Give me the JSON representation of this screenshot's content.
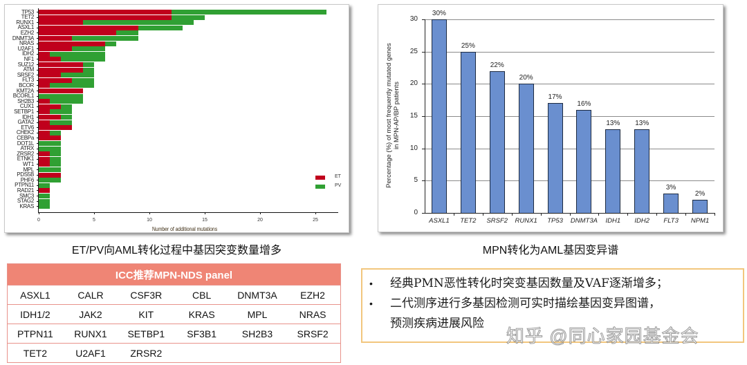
{
  "left_panel": {
    "caption": "ET/PV向AML转化过程中基因突变数量增多",
    "legend": [
      {
        "label": "ET",
        "color": "#c0001c"
      },
      {
        "label": "PV",
        "color": "#30a033"
      }
    ]
  },
  "right_panel": {
    "caption": "MPN转化为AML基因变异谱"
  },
  "icc_table": {
    "title": "ICC推荐MPN-NDS panel",
    "rows": [
      [
        "ASXL1",
        "CALR",
        "CSF3R",
        "CBL",
        "DNMT3A",
        "EZH2"
      ],
      [
        "IDH1/2",
        "JAK2",
        "KIT",
        "KRAS",
        "MPL",
        "NRAS"
      ],
      [
        "PTPN11",
        "RUNX1",
        "SETBP1",
        "SF3B1",
        "SH2B3",
        "SRSF2"
      ],
      [
        "TET2",
        "U2AF1",
        "ZRSR2",
        "",
        "",
        ""
      ]
    ]
  },
  "notes": {
    "bullet": "•",
    "items": [
      "经典PMN恶性转化时突变基因数量及VAF逐渐增多；",
      "二代测序进行多基因检测可实时描绘基因变异图谱，",
      "预测疾病进展风险"
    ]
  },
  "watermark": "知乎 @同心家园基金会",
  "chart_data": [
    {
      "type": "bar",
      "orientation": "horizontal",
      "stacked": true,
      "title": "",
      "xlabel": "Number of additional mutations",
      "ylabel": "",
      "xlim": [
        0,
        27
      ],
      "xticks": [
        0,
        5,
        10,
        15,
        20,
        25
      ],
      "legend_position": "right",
      "categories": [
        "TP53",
        "TET2",
        "RUNX1",
        "ASXL1",
        "EZH2",
        "DNMT3A",
        "NRAS",
        "U2AF1",
        "IDH2",
        "NF1",
        "SUZ12",
        "ATM",
        "SRSF2",
        "FLT3",
        "BCOR",
        "KMT2A",
        "BCORL1",
        "SH2B3",
        "CUX1",
        "SETBP1",
        "IDH1",
        "GATA2",
        "ETV6",
        "CHEK2",
        "CEBPa",
        "DOT1L",
        "ATRX",
        "ZRSR2",
        "ETNK1",
        "WT1",
        "MPL",
        "PDS5B",
        "PHF6",
        "PTPN11",
        "RAD21",
        "SMC3",
        "STAG2",
        "KRAS"
      ],
      "series": [
        {
          "name": "ET",
          "color": "#c0001c",
          "values": [
            12,
            12,
            4,
            9,
            7,
            3,
            6,
            3,
            1,
            2,
            4,
            4,
            2,
            3,
            1,
            4,
            0,
            1,
            2,
            1,
            2,
            1,
            3,
            1,
            2,
            0,
            0,
            1,
            1,
            1,
            0,
            2,
            0,
            0,
            1,
            0,
            0,
            0
          ]
        },
        {
          "name": "PV",
          "color": "#30a033",
          "values": [
            14,
            3,
            10,
            4,
            2,
            6,
            1,
            3,
            5,
            4,
            1,
            1,
            3,
            2,
            4,
            0,
            4,
            3,
            1,
            2,
            1,
            2,
            0,
            1,
            0,
            2,
            2,
            1,
            1,
            1,
            2,
            0,
            2,
            1,
            0,
            1,
            1,
            1
          ]
        }
      ]
    },
    {
      "type": "bar",
      "title": "",
      "xlabel": "",
      "ylabel": "Percentage (%) of most frequently mutated genes in MPN-AP/BP patients",
      "ylim": [
        0,
        30
      ],
      "yticks": [
        0,
        5,
        10,
        15,
        20,
        25,
        30
      ],
      "grid": true,
      "categories": [
        "ASXL1",
        "TET2",
        "SRSF2",
        "RUNX1",
        "TP53",
        "DNMT3A",
        "IDH1",
        "IDH2",
        "FLT3",
        "NPM1"
      ],
      "values": [
        30,
        25,
        22,
        20,
        17,
        16,
        13,
        13,
        3,
        2
      ],
      "data_labels": [
        "30%",
        "25%",
        "22%",
        "20%",
        "17%",
        "16%",
        "13%",
        "13%",
        "3%",
        "2%"
      ],
      "bar_color": "#6a8fcf"
    }
  ]
}
